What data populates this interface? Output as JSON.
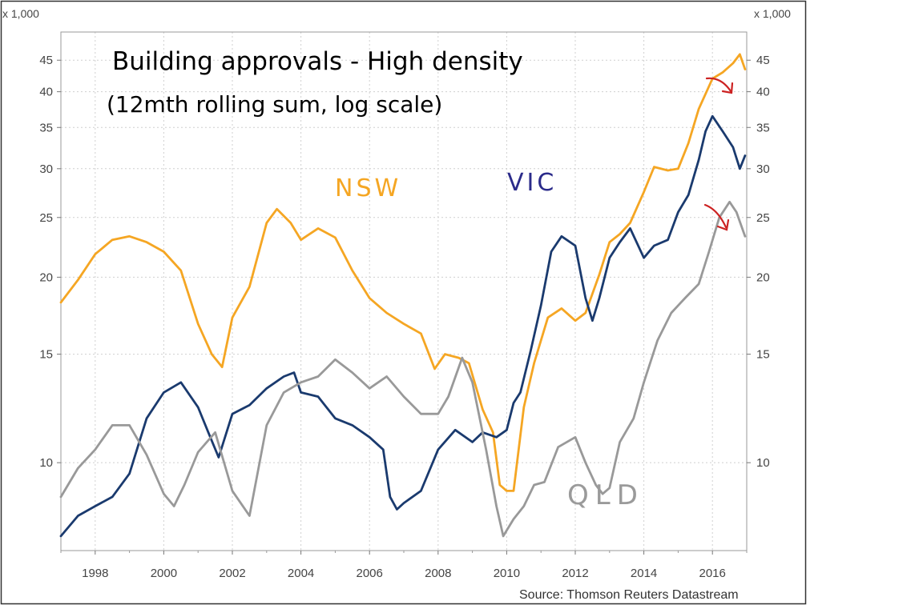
{
  "chart_data": {
    "type": "line",
    "title_line1": "Building approvals - High density",
    "title_line2": "(12mth rolling sum, log scale)",
    "unit_left": "x 1,000",
    "unit_right": "x 1,000",
    "source": "Source: Thomson Reuters Datastream",
    "y_scale": "log",
    "ylim": [
      7.2,
      50
    ],
    "y_ticks": [
      10,
      15,
      20,
      25,
      30,
      35,
      40,
      45
    ],
    "x_range": [
      1997.0,
      2017.0
    ],
    "x_ticks": [
      1998,
      2000,
      2002,
      2004,
      2006,
      2008,
      2010,
      2012,
      2014,
      2016
    ],
    "grid": true,
    "colors": {
      "NSW": "#f5a623",
      "VIC": "#1a3a6e",
      "QLD": "#999999",
      "arrow": "#cc2222"
    },
    "series_labels": {
      "NSW": "NSW",
      "VIC": "VIC",
      "QLD": "QLD"
    },
    "series": [
      {
        "key": "NSW",
        "x": [
          1997.0,
          1997.5,
          1998.0,
          1998.5,
          1999.0,
          1999.5,
          2000.0,
          2000.5,
          2001.0,
          2001.4,
          2001.7,
          2002.0,
          2002.5,
          2003.0,
          2003.3,
          2003.7,
          2004.0,
          2004.5,
          2005.0,
          2005.5,
          2006.0,
          2006.5,
          2007.0,
          2007.5,
          2007.9,
          2008.2,
          2008.6,
          2008.9,
          2009.3,
          2009.6,
          2009.8,
          2010.0,
          2010.2,
          2010.5,
          2010.8,
          2011.2,
          2011.6,
          2012.0,
          2012.3,
          2012.7,
          2013.0,
          2013.3,
          2013.6,
          2014.0,
          2014.3,
          2014.7,
          2015.0,
          2015.3,
          2015.6,
          2016.0,
          2016.3,
          2016.6,
          2016.8,
          2016.95
        ],
        "y": [
          18.2,
          19.8,
          21.8,
          23.0,
          23.3,
          22.8,
          22.0,
          20.5,
          16.8,
          15.0,
          14.3,
          17.2,
          19.3,
          24.5,
          25.8,
          24.5,
          23.0,
          24.0,
          23.2,
          20.5,
          18.5,
          17.5,
          16.8,
          16.2,
          14.2,
          15.0,
          14.8,
          14.5,
          12.2,
          11.2,
          9.2,
          9.0,
          9.0,
          12.3,
          14.5,
          17.2,
          17.8,
          17.0,
          17.5,
          20.2,
          22.8,
          23.5,
          24.5,
          27.5,
          30.2,
          29.8,
          30.0,
          33.0,
          37.5,
          42.0,
          43.0,
          44.5,
          46.0,
          43.5
        ]
      },
      {
        "key": "VIC",
        "x": [
          1997.0,
          1997.5,
          1998.0,
          1998.5,
          1999.0,
          1999.5,
          2000.0,
          2000.5,
          2001.0,
          2001.3,
          2001.6,
          2002.0,
          2002.5,
          2003.0,
          2003.5,
          2003.8,
          2004.0,
          2004.5,
          2005.0,
          2005.5,
          2006.0,
          2006.4,
          2006.6,
          2006.8,
          2007.0,
          2007.5,
          2008.0,
          2008.5,
          2009.0,
          2009.3,
          2009.7,
          2010.0,
          2010.2,
          2010.4,
          2010.7,
          2011.0,
          2011.3,
          2011.6,
          2012.0,
          2012.3,
          2012.5,
          2012.7,
          2013.0,
          2013.3,
          2013.6,
          2014.0,
          2014.3,
          2014.7,
          2015.0,
          2015.3,
          2015.6,
          2015.8,
          2016.0,
          2016.3,
          2016.6,
          2016.8,
          2016.95
        ],
        "y": [
          7.6,
          8.2,
          8.5,
          8.8,
          9.6,
          11.8,
          13.0,
          13.5,
          12.3,
          11.2,
          10.2,
          12.0,
          12.4,
          13.2,
          13.8,
          14.0,
          13.0,
          12.8,
          11.8,
          11.5,
          11.0,
          10.5,
          8.8,
          8.4,
          8.6,
          9.0,
          10.5,
          11.3,
          10.8,
          11.2,
          11.0,
          11.3,
          12.5,
          13.0,
          15.2,
          18.0,
          22.0,
          23.3,
          22.5,
          18.5,
          17.0,
          18.5,
          21.5,
          22.8,
          24.0,
          21.5,
          22.5,
          23.0,
          25.5,
          27.2,
          31.0,
          34.5,
          36.5,
          34.5,
          32.5,
          30.0,
          31.5
        ]
      },
      {
        "key": "QLD",
        "x": [
          1997.0,
          1997.5,
          1998.0,
          1998.5,
          1999.0,
          1999.5,
          2000.0,
          2000.3,
          2000.6,
          2001.0,
          2001.5,
          2002.0,
          2002.5,
          2003.0,
          2003.5,
          2004.0,
          2004.5,
          2005.0,
          2005.5,
          2006.0,
          2006.5,
          2007.0,
          2007.5,
          2008.0,
          2008.3,
          2008.7,
          2009.0,
          2009.4,
          2009.7,
          2009.9,
          2010.2,
          2010.5,
          2010.8,
          2011.1,
          2011.5,
          2012.0,
          2012.3,
          2012.6,
          2012.8,
          2013.0,
          2013.3,
          2013.7,
          2014.0,
          2014.4,
          2014.8,
          2015.2,
          2015.6,
          2015.9,
          2016.2,
          2016.5,
          2016.7,
          2016.95
        ],
        "y": [
          8.8,
          9.8,
          10.5,
          11.5,
          11.5,
          10.3,
          8.9,
          8.5,
          9.2,
          10.4,
          11.2,
          9.0,
          8.2,
          11.5,
          13.0,
          13.5,
          13.8,
          14.7,
          14.0,
          13.2,
          13.8,
          12.8,
          12.0,
          12.0,
          12.8,
          14.8,
          13.5,
          10.5,
          8.5,
          7.6,
          8.1,
          8.5,
          9.2,
          9.3,
          10.6,
          11.0,
          10.0,
          9.2,
          8.9,
          9.1,
          10.8,
          11.8,
          13.5,
          15.8,
          17.5,
          18.5,
          19.5,
          22.0,
          25.0,
          26.5,
          25.5,
          23.3
        ]
      }
    ]
  }
}
